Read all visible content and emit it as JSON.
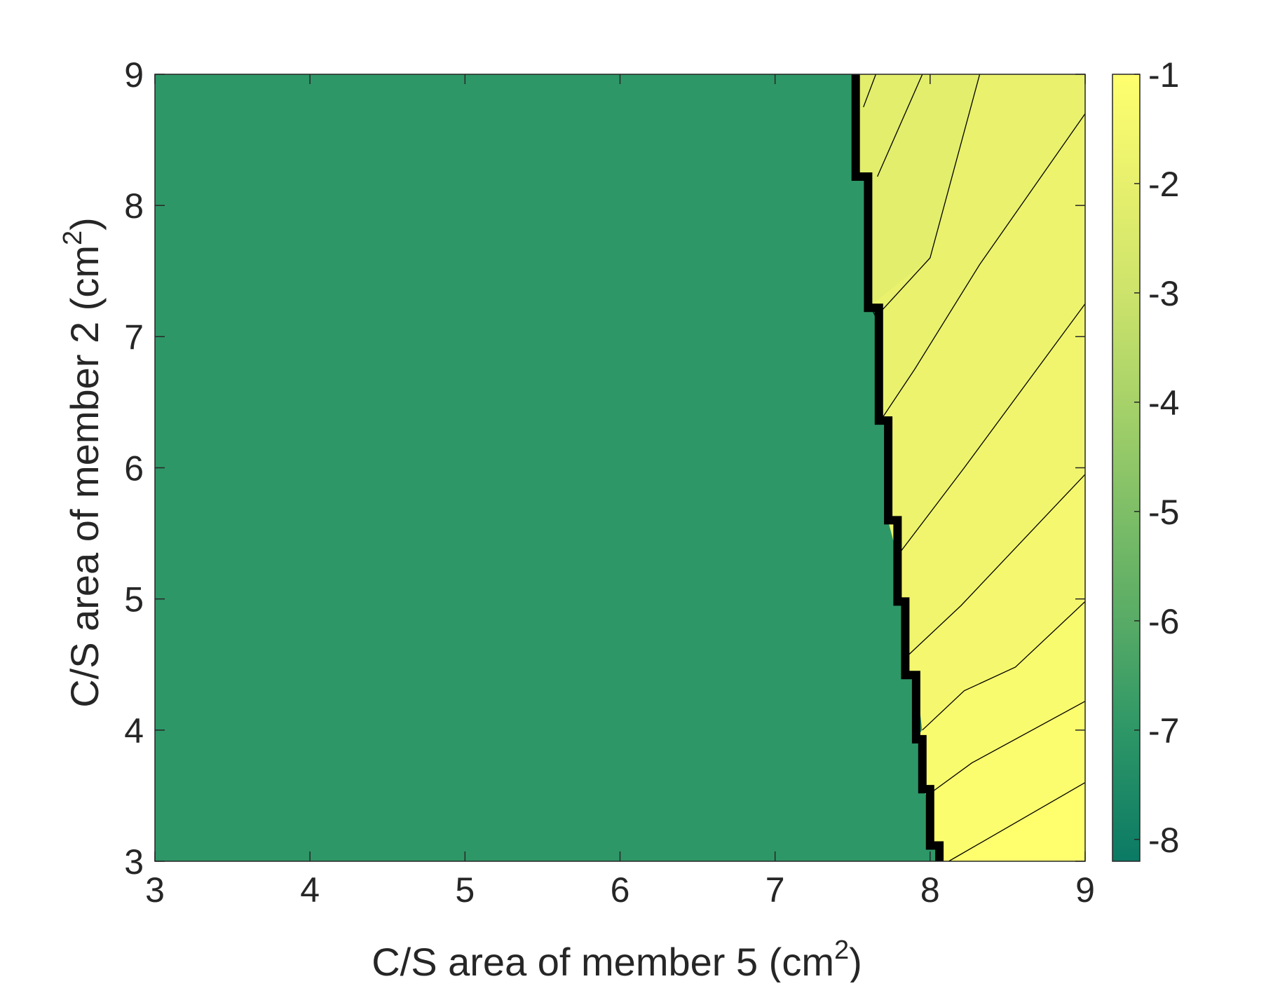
{
  "chart_data": {
    "type": "contour",
    "xlabel": "C/S area of member 5 (cm",
    "xlabel_sup": "2",
    "xlabel_end": ")",
    "ylabel": "C/S area of member 2 (cm",
    "ylabel_sup": "2",
    "ylabel_end": ")",
    "xlim": [
      3,
      9
    ],
    "ylim": [
      3,
      9
    ],
    "xticks": [
      "3",
      "4",
      "5",
      "6",
      "7",
      "8",
      "9"
    ],
    "yticks": [
      "3",
      "4",
      "5",
      "6",
      "7",
      "8",
      "9"
    ],
    "grid": false,
    "colorbar": {
      "range": [
        -8.2,
        -1
      ],
      "ticks": [
        "-8",
        "-7",
        "-6",
        "-5",
        "-4",
        "-3",
        "-2",
        "-1"
      ],
      "tick_values": [
        -8,
        -7,
        -6,
        -5,
        -4,
        -3,
        -2,
        -1
      ],
      "placement": "right",
      "stops": [
        {
          "value": -8.2,
          "color": "#0b7a64"
        },
        {
          "value": -7,
          "color": "#2e9767"
        },
        {
          "value": -6,
          "color": "#58ab66"
        },
        {
          "value": -5,
          "color": "#7ebe67"
        },
        {
          "value": -4,
          "color": "#a7d269"
        },
        {
          "value": -3,
          "color": "#cde36b"
        },
        {
          "value": -2,
          "color": "#e7f06d"
        },
        {
          "value": -1,
          "color": "#ffff6e"
        }
      ]
    },
    "infeasible_region": {
      "value": -7.2,
      "color": "#2e9767"
    },
    "boundary": [
      [
        7.52,
        9.0
      ],
      [
        7.52,
        8.22
      ],
      [
        7.6,
        8.22
      ],
      [
        7.6,
        7.22
      ],
      [
        7.67,
        7.22
      ],
      [
        7.67,
        6.36
      ],
      [
        7.73,
        6.36
      ],
      [
        7.73,
        5.6
      ],
      [
        7.79,
        5.6
      ],
      [
        7.79,
        4.98
      ],
      [
        7.84,
        4.98
      ],
      [
        7.84,
        4.42
      ],
      [
        7.91,
        4.42
      ],
      [
        7.91,
        3.93
      ],
      [
        7.95,
        3.93
      ],
      [
        7.95,
        3.55
      ],
      [
        8.0,
        3.55
      ],
      [
        8.0,
        3.12
      ],
      [
        8.06,
        3.12
      ],
      [
        8.06,
        3.0
      ]
    ],
    "fill_levels": [
      {
        "value": -2.0,
        "color": "#e2ee6c",
        "polygon": [
          [
            7.52,
            9.0
          ],
          [
            8.32,
            9.0
          ],
          [
            8.0,
            7.6
          ],
          [
            7.6,
            7.22
          ],
          [
            7.6,
            8.22
          ],
          [
            7.52,
            8.22
          ]
        ]
      },
      {
        "value": -1.85,
        "color": "#e9f16d",
        "polygon": [
          [
            8.32,
            9.0
          ],
          [
            9.0,
            9.0
          ],
          [
            9.0,
            8.7
          ],
          [
            8.32,
            7.55
          ],
          [
            7.9,
            6.75
          ],
          [
            7.67,
            6.36
          ],
          [
            7.67,
            7.22
          ],
          [
            7.6,
            7.22
          ],
          [
            8.0,
            7.6
          ]
        ]
      },
      {
        "value": -1.7,
        "color": "#edf36d",
        "polygon": [
          [
            9.0,
            8.7
          ],
          [
            9.0,
            7.25
          ],
          [
            8.22,
            6.0
          ],
          [
            7.79,
            5.33
          ],
          [
            7.73,
            5.6
          ],
          [
            7.73,
            6.36
          ],
          [
            7.67,
            6.36
          ],
          [
            7.9,
            6.75
          ],
          [
            8.32,
            7.55
          ]
        ]
      },
      {
        "value": -1.55,
        "color": "#f1f56d",
        "polygon": [
          [
            9.0,
            7.25
          ],
          [
            9.0,
            5.95
          ],
          [
            8.2,
            4.95
          ],
          [
            7.84,
            4.55
          ],
          [
            7.84,
            4.98
          ],
          [
            7.79,
            4.98
          ],
          [
            7.79,
            5.33
          ],
          [
            8.22,
            6.0
          ]
        ]
      },
      {
        "value": -1.4,
        "color": "#f5f86e",
        "polygon": [
          [
            9.0,
            5.95
          ],
          [
            9.0,
            4.98
          ],
          [
            8.55,
            4.48
          ],
          [
            8.22,
            4.3
          ],
          [
            7.95,
            4.0
          ],
          [
            7.91,
            4.42
          ],
          [
            7.84,
            4.42
          ],
          [
            7.84,
            4.55
          ],
          [
            8.2,
            4.95
          ]
        ]
      },
      {
        "value": -1.25,
        "color": "#f9fb6e",
        "polygon": [
          [
            9.0,
            4.98
          ],
          [
            9.0,
            4.22
          ],
          [
            8.27,
            3.75
          ],
          [
            7.98,
            3.5
          ],
          [
            7.95,
            3.55
          ],
          [
            7.95,
            3.93
          ],
          [
            7.91,
            3.93
          ],
          [
            7.95,
            4.0
          ],
          [
            8.22,
            4.3
          ],
          [
            8.55,
            4.48
          ]
        ]
      },
      {
        "value": -1.1,
        "color": "#fcfd6e",
        "polygon": [
          [
            9.0,
            4.22
          ],
          [
            9.0,
            3.6
          ],
          [
            8.12,
            3.0
          ],
          [
            8.06,
            3.0
          ],
          [
            8.06,
            3.12
          ],
          [
            8.0,
            3.12
          ],
          [
            8.0,
            3.55
          ],
          [
            7.98,
            3.5
          ],
          [
            8.27,
            3.75
          ]
        ]
      },
      {
        "value": -1.0,
        "color": "#ffff6e",
        "polygon": [
          [
            9.0,
            3.6
          ],
          [
            9.0,
            3.0
          ],
          [
            8.12,
            3.0
          ]
        ]
      }
    ],
    "contour_lines": [
      [
        [
          7.57,
          8.75
        ],
        [
          7.65,
          9.0
        ]
      ],
      [
        [
          7.66,
          8.22
        ],
        [
          7.95,
          9.0
        ]
      ],
      [
        [
          7.62,
          7.22
        ],
        [
          7.65,
          7.15
        ],
        [
          8.0,
          7.6
        ],
        [
          8.32,
          9.0
        ]
      ],
      [
        [
          7.68,
          6.36
        ],
        [
          7.9,
          6.75
        ],
        [
          8.32,
          7.55
        ],
        [
          9.0,
          8.7
        ]
      ],
      [
        [
          7.79,
          5.33
        ],
        [
          8.22,
          6.0
        ],
        [
          9.0,
          7.25
        ]
      ],
      [
        [
          7.84,
          4.55
        ],
        [
          8.2,
          4.95
        ],
        [
          9.0,
          5.95
        ]
      ],
      [
        [
          7.95,
          4.0
        ],
        [
          8.22,
          4.3
        ],
        [
          8.55,
          4.48
        ],
        [
          9.0,
          4.98
        ]
      ],
      [
        [
          7.98,
          3.5
        ],
        [
          8.27,
          3.75
        ],
        [
          9.0,
          4.22
        ]
      ],
      [
        [
          8.12,
          3.0
        ],
        [
          9.0,
          3.6
        ]
      ]
    ]
  }
}
